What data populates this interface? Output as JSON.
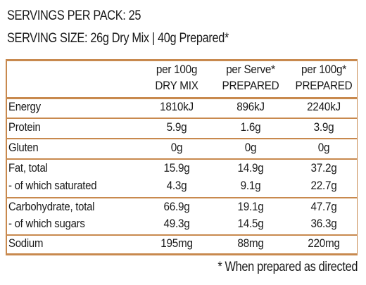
{
  "header": {
    "servings": "SERVINGS PER PACK: 25",
    "serving_size": "SERVING SIZE: 26g Dry Mix | 40g Prepared*"
  },
  "table": {
    "columns": [
      {
        "line1": "per 100g",
        "line2": "DRY MIX"
      },
      {
        "line1": "per Serve*",
        "line2": "PREPARED"
      },
      {
        "line1": "per 100g*",
        "line2": "PREPARED"
      }
    ],
    "rows": [
      {
        "label": "Energy",
        "values": [
          "1810kJ",
          "896kJ",
          "2240kJ"
        ]
      },
      {
        "label": "Protein",
        "values": [
          "5.9g",
          "1.6g",
          "3.9g"
        ]
      },
      {
        "label": "Gluten",
        "values": [
          "0g",
          "0g",
          "0g"
        ]
      },
      {
        "label": "Fat, total",
        "values": [
          "15.9g",
          "14.9g",
          "37.2g"
        ]
      },
      {
        "label": "- of which saturated",
        "values": [
          "4.3g",
          "9.1g",
          "22.7g"
        ]
      },
      {
        "label": "Carbohydrate, total",
        "values": [
          "66.9g",
          "19.1g",
          "47.7g"
        ]
      },
      {
        "label": "- of which sugars",
        "values": [
          "49.3g",
          "14.5g",
          "36.3g"
        ]
      },
      {
        "label": "Sodium",
        "values": [
          "195mg",
          "88mg",
          "220mg"
        ]
      }
    ]
  },
  "footnote": "* When prepared as directed",
  "colors": {
    "rule": "#c8894e",
    "text": "#1a1a1a"
  }
}
